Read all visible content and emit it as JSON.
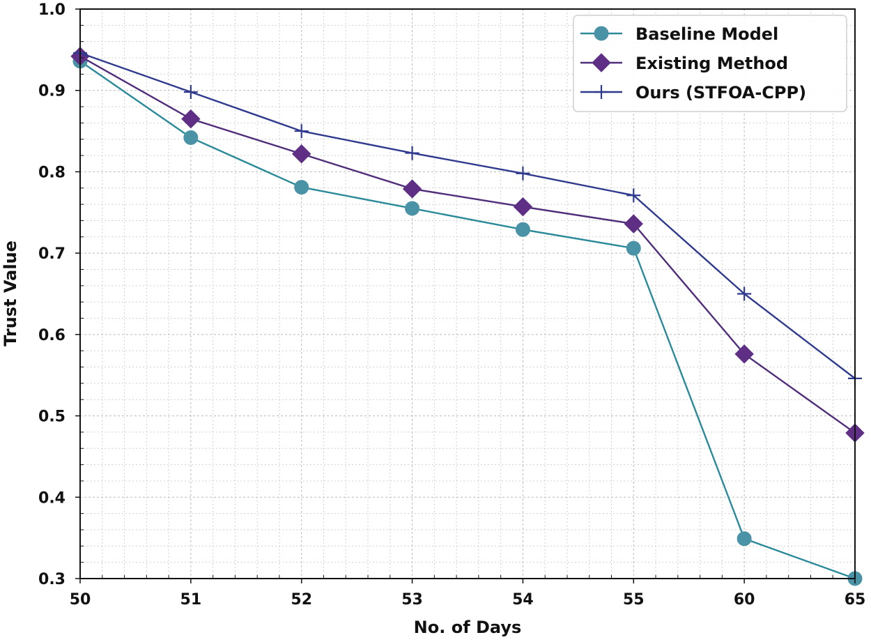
{
  "chart_data": {
    "type": "line",
    "title": "",
    "xlabel": "No. of Days",
    "ylabel": "Trust Value",
    "categories": [
      "50",
      "51",
      "52",
      "53",
      "54",
      "55",
      "60",
      "65"
    ],
    "ylim": [
      0.3,
      1.0
    ],
    "yticks": [
      "0.3",
      "0.4",
      "0.5",
      "0.6",
      "0.7",
      "0.8",
      "0.9",
      "1.0"
    ],
    "grid": true,
    "legend_position": "top-right",
    "series": [
      {
        "name": "Baseline Model",
        "marker": "circle",
        "color": "#2a8a99",
        "marker_color": "#4a93a6",
        "values": [
          0.936,
          0.842,
          0.781,
          0.755,
          0.729,
          0.706,
          0.349,
          0.3
        ]
      },
      {
        "name": "Existing Method",
        "marker": "diamond",
        "color": "#4f2d7a",
        "marker_color": "#5e2f84",
        "values": [
          0.942,
          0.865,
          0.822,
          0.779,
          0.757,
          0.736,
          0.576,
          0.479
        ]
      },
      {
        "name": "Ours (STFOA-CPP)",
        "marker": "plus",
        "color": "#2f3a8f",
        "marker_color": "#2f3a8f",
        "values": [
          0.946,
          0.898,
          0.85,
          0.823,
          0.798,
          0.771,
          0.65,
          0.546
        ]
      }
    ]
  }
}
